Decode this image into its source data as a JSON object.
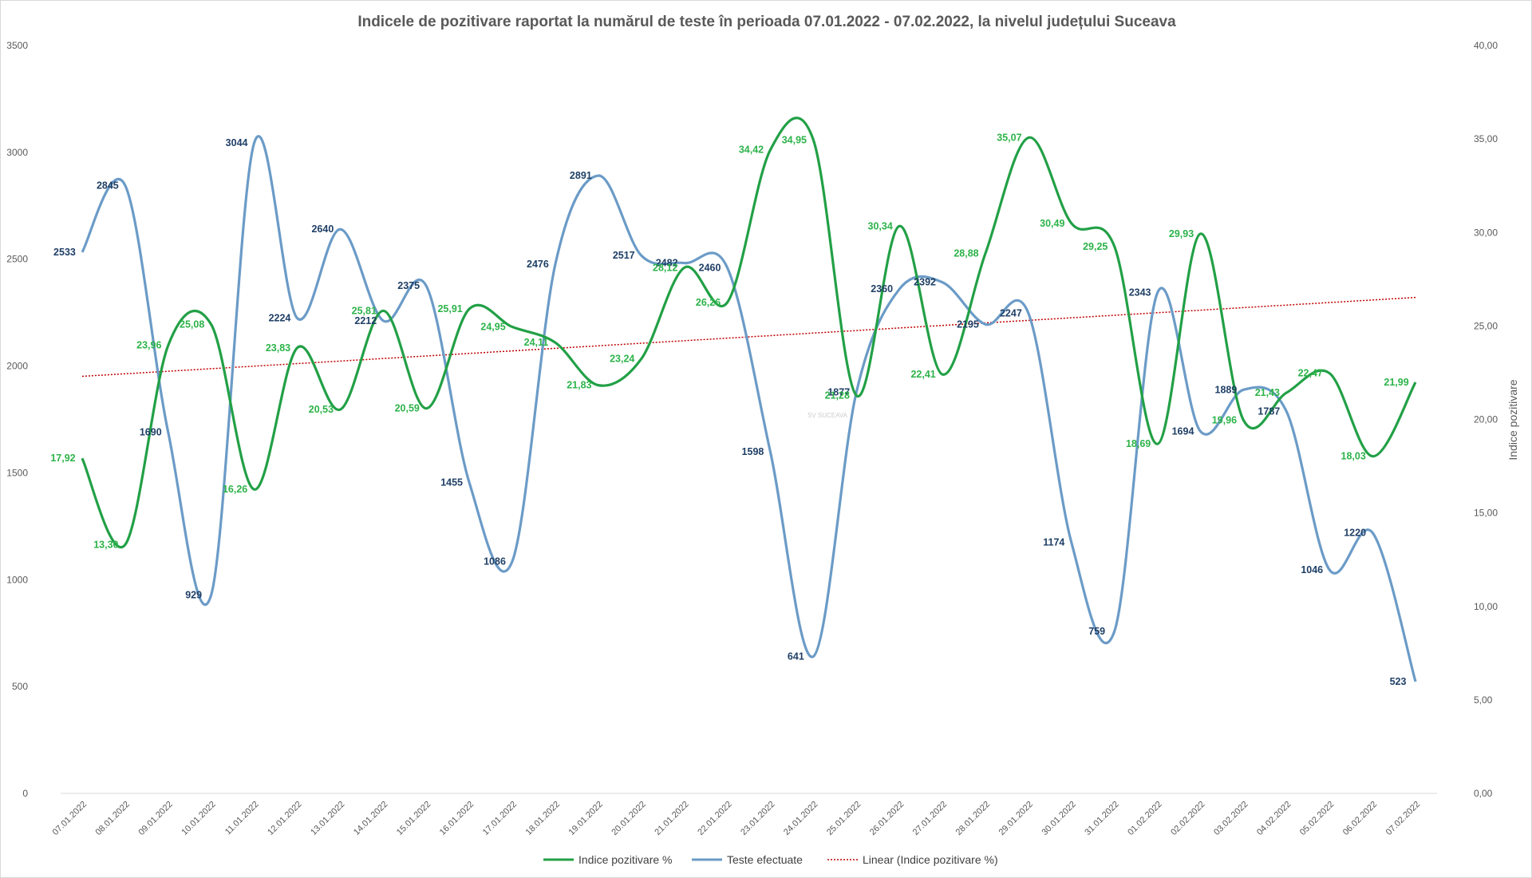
{
  "chart_data": {
    "type": "line",
    "title": "Indicele de pozitivare  raportat la numărul  de teste în perioada  07.01.2022 - 07.02.2022, la nivelul județului  Suceava",
    "categories": [
      "07.01.2022",
      "08.01.2022",
      "09.01.2022",
      "10.01.2022",
      "11.01.2022",
      "12.01.2022",
      "13.01.2022",
      "14.01.2022",
      "15.01.2022",
      "16.01.2022",
      "17.01.2022",
      "18.01.2022",
      "19.01.2022",
      "20.01.2022",
      "21.01.2022",
      "22.01.2022",
      "23.01.2022",
      "24.01.2022",
      "25.01.2022",
      "26.01.2022",
      "27.01.2022",
      "28.01.2022",
      "29.01.2022",
      "30.01.2022",
      "31.01.2022",
      "01.02.2022",
      "02.02.2022",
      "03.02.2022",
      "04.02.2022",
      "05.02.2022",
      "06.02.2022",
      "07.02.2022"
    ],
    "series": [
      {
        "name": "Indice pozitivare %",
        "axis": "right",
        "color": "#22a046",
        "values": [
          17.92,
          13.3,
          23.96,
          25.08,
          16.26,
          23.83,
          20.53,
          25.81,
          20.59,
          25.91,
          24.95,
          24.11,
          21.83,
          23.24,
          28.12,
          26.26,
          34.42,
          34.95,
          21.28,
          30.34,
          22.41,
          28.88,
          35.07,
          30.49,
          29.25,
          18.69,
          29.93,
          19.96,
          21.43,
          22.47,
          18.03,
          21.99
        ],
        "labels": [
          "17,92",
          "13,30",
          "23,96",
          "25,08",
          "16,26",
          "23,83",
          "20,53",
          "25,81",
          "20,59",
          "25,91",
          "24,95",
          "24,11",
          "21,83",
          "23,24",
          "28,12",
          "26,26",
          "34,42",
          "34,95",
          "21,28",
          "30,34",
          "22,41",
          "28,88",
          "35,07",
          "30,49",
          "29,25",
          "18,69",
          "29,93",
          "19,96",
          "21,43",
          "22,47",
          "18,03",
          "21,99"
        ]
      },
      {
        "name": "Teste efectuate",
        "axis": "left",
        "color": "#6b9bc7",
        "values": [
          2533,
          2845,
          1690,
          929,
          3044,
          2224,
          2640,
          2212,
          2375,
          1455,
          1086,
          2476,
          2891,
          2517,
          2482,
          2460,
          1598,
          641,
          1877,
          2360,
          2392,
          2195,
          2247,
          1174,
          759,
          2343,
          1694,
          1889,
          1787,
          1046,
          1220,
          523
        ],
        "labels": [
          "2533",
          "2845",
          "1690",
          "929",
          "3044",
          "2224",
          "2640",
          "2212",
          "2375",
          "1455",
          "1086",
          "2476",
          "2891",
          "2517",
          "2482",
          "2460",
          "1598",
          "641",
          "1877",
          "2360",
          "2392",
          "2195",
          "2247",
          "1174",
          "759",
          "2343",
          "1694",
          "1889",
          "1787",
          "1046",
          "1220",
          "523"
        ]
      }
    ],
    "trendline": {
      "name": "Linear (Indice pozitivare %)",
      "color": "#c00000"
    },
    "yaxis_left": {
      "min": 0,
      "max": 3500,
      "ticks": [
        "0",
        "500",
        "1000",
        "1500",
        "2000",
        "2500",
        "3000",
        "3500"
      ]
    },
    "yaxis_right": {
      "min": 0,
      "max": 40,
      "ticks": [
        "0,00",
        "5,00",
        "10,00",
        "15,00",
        "20,00",
        "25,00",
        "30,00",
        "35,00",
        "40,00"
      ],
      "label": "Indice pozitivare"
    },
    "watermark": "SV SUCEAVA",
    "legend": [
      "Indice pozitivare %",
      "Teste efectuate",
      "Linear (Indice pozitivare %)"
    ]
  }
}
